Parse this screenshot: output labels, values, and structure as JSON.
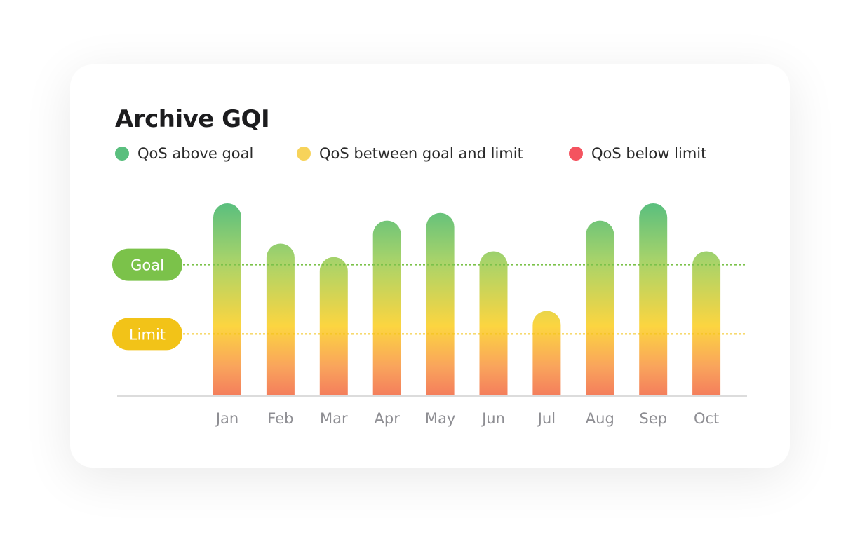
{
  "chart_data": {
    "type": "bar",
    "title": "Archive GQI",
    "categories": [
      "Jan",
      "Feb",
      "Mar",
      "Apr",
      "May",
      "Jun",
      "Jul",
      "Aug",
      "Sep",
      "Oct"
    ],
    "values": [
      100,
      79,
      72,
      91,
      95,
      75,
      44,
      91,
      100,
      75
    ],
    "ylim": [
      0,
      100
    ],
    "legend": [
      {
        "label": "QoS above goal",
        "color": "#5ABF7E"
      },
      {
        "label": "QoS between goal and limit",
        "color": "#F7D35A"
      },
      {
        "label": "QoS below limit",
        "color": "#F4535F"
      }
    ],
    "reference_lines": [
      {
        "label": "Goal",
        "value": 68,
        "color": "#7BC24A"
      },
      {
        "label": "Limit",
        "value": 32,
        "color": "#F2C318"
      }
    ],
    "grid": false,
    "legend_position": "top-left"
  }
}
